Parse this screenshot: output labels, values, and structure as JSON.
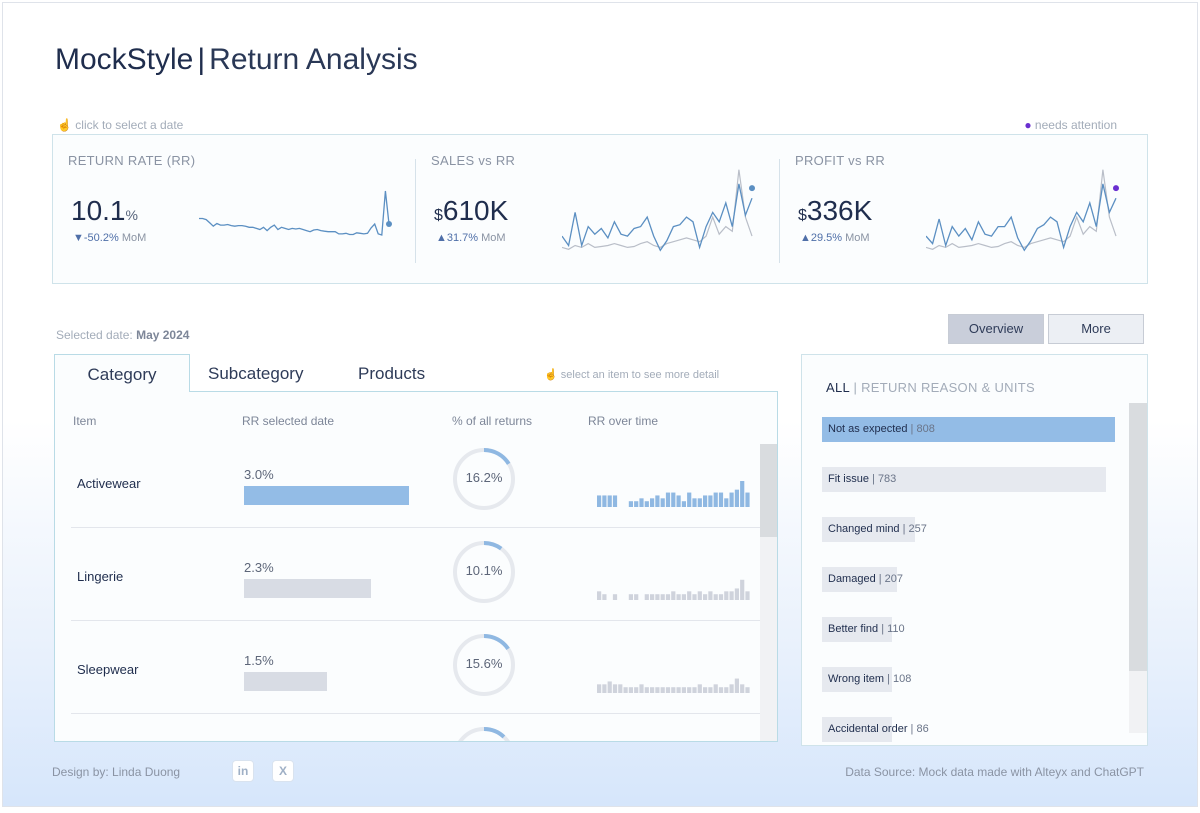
{
  "header": {
    "brand": "MockStyle",
    "separator": "|",
    "subtitle": "Return Analysis"
  },
  "hints": {
    "click_date": "click to select a date",
    "needs_attention": "needs attention",
    "select_item": "select an item to see more detail"
  },
  "kpis": [
    {
      "label": "RETURN RATE (RR)",
      "value": "10.1",
      "unit": "%",
      "delta": "▼-50.2%",
      "delta_suffix": "MoM",
      "sparkline": [
        30,
        30,
        28,
        22,
        16,
        21,
        18,
        18,
        19,
        17,
        16,
        17,
        17,
        16,
        14,
        14,
        12,
        10,
        14,
        8,
        14,
        18,
        10,
        14,
        12,
        10,
        12,
        11,
        12,
        10,
        8,
        6,
        9,
        10,
        8,
        7,
        6,
        6,
        6,
        2,
        2,
        3,
        1,
        1,
        4,
        3,
        2,
        3,
        13,
        20,
        2,
        0,
        80,
        20
      ],
      "accent": "#5b8fc2"
    },
    {
      "label": "SALES vs RR",
      "currency": "$",
      "value": "610K",
      "delta": "▲31.7%",
      "delta_suffix": "MoM",
      "series_a": [
        20,
        10,
        45,
        10,
        30,
        22,
        28,
        18,
        35,
        22,
        20,
        28,
        30,
        40,
        20,
        5,
        15,
        30,
        32,
        40,
        35,
        8,
        30,
        45,
        35,
        55,
        30,
        75,
        42,
        60
      ],
      "series_b": [
        8,
        6,
        10,
        8,
        12,
        8,
        9,
        10,
        12,
        10,
        8,
        9,
        12,
        14,
        10,
        8,
        12,
        14,
        16,
        18,
        16,
        14,
        20,
        40,
        22,
        30,
        25,
        90,
        40,
        20
      ],
      "accent": "#5b8fc2"
    },
    {
      "label": "PROFIT vs RR",
      "currency": "$",
      "value": "336K",
      "delta": "▲29.5%",
      "delta_suffix": "MoM",
      "series_a": [
        20,
        12,
        38,
        10,
        30,
        20,
        28,
        16,
        35,
        22,
        20,
        30,
        30,
        40,
        18,
        5,
        15,
        28,
        32,
        40,
        35,
        8,
        30,
        45,
        35,
        55,
        30,
        75,
        45,
        60
      ],
      "series_b": [
        8,
        6,
        10,
        8,
        12,
        8,
        9,
        10,
        12,
        10,
        8,
        9,
        12,
        14,
        10,
        8,
        12,
        14,
        16,
        18,
        16,
        14,
        20,
        40,
        22,
        30,
        25,
        90,
        40,
        20
      ],
      "accent": "#5b8fc2",
      "attention": "#6a2fd0"
    }
  ],
  "selected_date": {
    "label": "Selected date:",
    "value": "May 2024"
  },
  "toggle": {
    "overview": "Overview",
    "more": "More"
  },
  "tabs": [
    "Category",
    "Subcategory",
    "Products"
  ],
  "table": {
    "headers": [
      "Item",
      "RR selected date",
      "% of all returns",
      "RR over time"
    ],
    "rows": [
      {
        "name": "Activewear",
        "rr": "3.0%",
        "rr_value": 3.0,
        "share": "16.2%",
        "share_value": 16.2,
        "highlight": true,
        "history": [
          4,
          4,
          4,
          4,
          0,
          0,
          2,
          2,
          3,
          2,
          3,
          4,
          3,
          5,
          5,
          4,
          2,
          5,
          3,
          3,
          4,
          4,
          5,
          5,
          3,
          5,
          6,
          9,
          5
        ]
      },
      {
        "name": "Lingerie",
        "rr": "2.3%",
        "rr_value": 2.3,
        "share": "10.1%",
        "share_value": 10.1,
        "highlight": false,
        "history": [
          3,
          2,
          0,
          2,
          0,
          0,
          2,
          2,
          0,
          2,
          2,
          2,
          2,
          2,
          3,
          2,
          2,
          3,
          2,
          3,
          2,
          3,
          2,
          2,
          3,
          3,
          4,
          7,
          3
        ]
      },
      {
        "name": "Sleepwear",
        "rr": "1.5%",
        "rr_value": 1.5,
        "share": "15.6%",
        "share_value": 15.6,
        "highlight": false,
        "history": [
          3,
          3,
          4,
          3,
          3,
          2,
          2,
          2,
          3,
          2,
          2,
          2,
          2,
          2,
          2,
          2,
          2,
          2,
          2,
          3,
          2,
          2,
          3,
          2,
          2,
          3,
          5,
          3,
          2
        ]
      },
      {
        "name": "",
        "rr": "",
        "rr_value": 0,
        "share": "",
        "share_value": 12,
        "highlight": false,
        "history": []
      }
    ]
  },
  "reasons": {
    "title_all": "ALL",
    "title_rest": "RETURN REASON & UNITS",
    "items": [
      {
        "label": "Not as expected",
        "count": "808",
        "value": 808,
        "highlight": true
      },
      {
        "label": "Fit issue",
        "count": "783",
        "value": 783,
        "highlight": false
      },
      {
        "label": "Changed mind",
        "count": "257",
        "value": 257,
        "highlight": false
      },
      {
        "label": "Damaged",
        "count": "207",
        "value": 207,
        "highlight": false
      },
      {
        "label": "Better find",
        "count": "110",
        "value": 110,
        "highlight": false
      },
      {
        "label": "Wrong item",
        "count": "108",
        "value": 108,
        "highlight": false
      },
      {
        "label": "Accidental order",
        "count": "86",
        "value": 86,
        "highlight": false
      }
    ]
  },
  "footer": {
    "design": "Design by: Linda Duong",
    "source": "Data Source: Mock data made with Alteyx and ChatGPT",
    "social": [
      {
        "icon": "linkedin-icon",
        "glyph": "in"
      },
      {
        "icon": "x-icon",
        "glyph": "X"
      }
    ]
  },
  "colors": {
    "highlight_bar": "#93bce6",
    "muted_bar": "#d8dce4",
    "ring_track": "#e6e9ee",
    "ring_fill": "#8fb8e2",
    "grey_line": "#b9bec8"
  }
}
